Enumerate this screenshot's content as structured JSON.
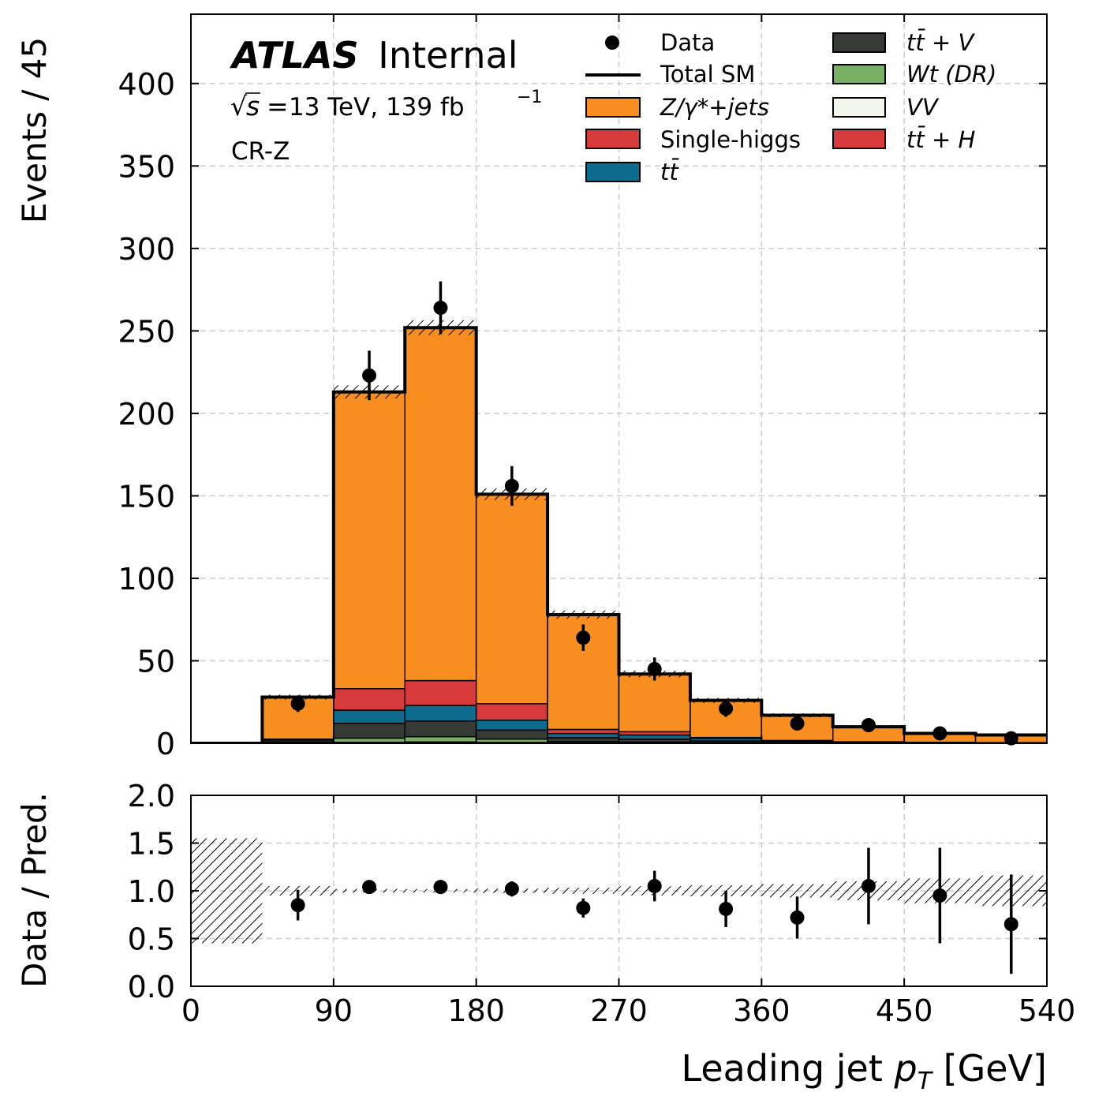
{
  "chart_data": {
    "type": "histogram-stack-with-ratio",
    "x_label_prefix": "Leading jet ",
    "x_label_var": "p",
    "x_label_sub": "T",
    "x_label_suffix": " [GeV]",
    "y_label_main": "Events / 45",
    "y_label_ratio": "Data / Pred.",
    "xlim": [
      0,
      540
    ],
    "ylim_main": [
      0,
      442
    ],
    "ylim_ratio": [
      0.0,
      2.0
    ],
    "x_ticks": [
      "0",
      "90",
      "180",
      "270",
      "360",
      "450",
      "540"
    ],
    "y_ticks_main": [
      "0",
      "50",
      "100",
      "150",
      "200",
      "250",
      "300",
      "350",
      "400"
    ],
    "y_ticks_ratio": [
      "0.0",
      "0.5",
      "1.0",
      "1.5",
      "2.0"
    ],
    "grid": true,
    "legend_position": "top-right",
    "bin_edges": [
      0,
      45,
      90,
      135,
      180,
      225,
      270,
      315,
      360,
      405,
      450,
      495,
      540
    ],
    "data_x": [
      67.5,
      112.5,
      157.5,
      202.5,
      247.5,
      292.5,
      337.5,
      382.5,
      427.5,
      472.5,
      517.5
    ],
    "data_y": [
      24,
      223,
      264,
      156,
      64,
      45,
      21,
      12,
      11,
      6,
      3
    ],
    "data_err": [
      5,
      15,
      16,
      12,
      8,
      7,
      5,
      3.5,
      3.3,
      2.5,
      1.8
    ],
    "ratio_y": [
      0.85,
      1.04,
      1.04,
      1.02,
      0.82,
      1.05,
      0.81,
      0.72,
      1.05,
      0.95,
      0.65
    ],
    "ratio_err": [
      0.16,
      0.06,
      0.06,
      0.08,
      0.1,
      0.16,
      0.19,
      0.22,
      0.4,
      0.5,
      0.52
    ],
    "total_sm": [
      0,
      28,
      213,
      252,
      151,
      78,
      42,
      26,
      17,
      10,
      6,
      5
    ],
    "stat_unc": [
      0,
      1.5,
      4,
      4.5,
      3.5,
      2.5,
      2,
      1.5,
      1.2,
      1,
      0.8,
      0.8
    ],
    "ratio_band_half_width": [
      0,
      0.05,
      0.02,
      0.018,
      0.023,
      0.032,
      0.048,
      0.058,
      0.07,
      0.1,
      0.13,
      0.16
    ],
    "ratio_band_first_bin": [
      0.45,
      1.55
    ],
    "stack": [
      {
        "name": "$t\\bar{t}+H$",
        "color": "#d73a3a",
        "values": [
          0,
          0,
          0,
          0,
          0,
          0,
          0,
          0,
          0,
          0,
          0,
          0
        ]
      },
      {
        "name": "$VV$",
        "color": "#f3f6ea",
        "values": [
          0,
          0.3,
          0.6,
          0.8,
          0.5,
          0.3,
          0.2,
          0.1,
          0.1,
          0,
          0,
          0
        ]
      },
      {
        "name": "$Wt$ (DR)",
        "color": "#78b163",
        "values": [
          0,
          0.5,
          2.5,
          3.2,
          2,
          0.8,
          0.5,
          0.3,
          0.2,
          0.1,
          0.1,
          0.1
        ]
      },
      {
        "name": "$t\\bar{t}+V$",
        "color": "#353a35",
        "values": [
          0,
          1.2,
          9,
          9.5,
          5.5,
          2.3,
          1.8,
          1,
          0.5,
          0.3,
          0.2,
          0.1
        ]
      },
      {
        "name": "$t\\bar{t}$",
        "color": "#0d6c8d",
        "values": [
          0,
          0.5,
          8,
          9.5,
          6,
          2.5,
          2.5,
          1.6,
          0.6,
          0.3,
          0.2,
          0.1
        ]
      },
      {
        "name": "Single-higgs",
        "color": "#d73a3a",
        "values": [
          0,
          0,
          13,
          15,
          10,
          2.5,
          2,
          0.5,
          0.3,
          0.2,
          0.1,
          0.1
        ]
      },
      {
        "name": "$Z/\\gamma*$+jets",
        "color": "#f98e20",
        "values": [
          0,
          25.5,
          179.9,
          214,
          127,
          69.6,
          35,
          22.5,
          15.3,
          9.1,
          5.4,
          4.6
        ]
      }
    ],
    "annotations": {
      "experiment": "ATLAS",
      "status": "Internal",
      "sqrt_s": "13 TeV, 139 fb",
      "lumi_exp": "−1",
      "region": "CR-Z"
    },
    "legend": {
      "col1": [
        {
          "kind": "marker",
          "label": "Data"
        },
        {
          "kind": "line",
          "label": "Total SM"
        },
        {
          "kind": "patch",
          "color": "#f98e20",
          "label": "Z/γ*+jets"
        },
        {
          "kind": "patch",
          "color": "#d73a3a",
          "label": "Single-higgs"
        },
        {
          "kind": "patch",
          "color": "#0d6c8d",
          "label": "tt̄"
        }
      ],
      "col2": [
        {
          "kind": "patch",
          "color": "#353a35",
          "label": "tt̄ + V"
        },
        {
          "kind": "patch",
          "color": "#78b163",
          "label": "Wt (DR)"
        },
        {
          "kind": "patch",
          "color": "#f3f6ea",
          "label": "VV"
        },
        {
          "kind": "patch",
          "color": "#d73a3a",
          "label": "tt̄ + H"
        }
      ]
    }
  }
}
